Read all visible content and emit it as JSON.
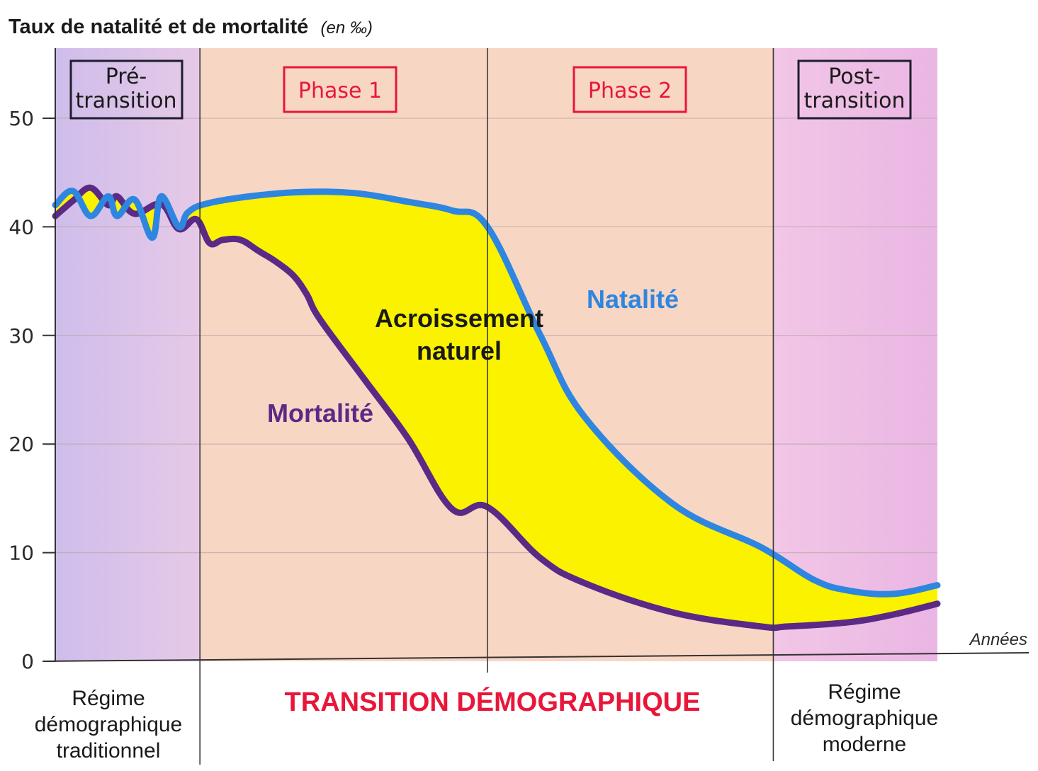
{
  "chart_data": {
    "type": "line",
    "title": "Taux de natalité et de mortalité",
    "title_unit": "(en ‰)",
    "xlabel": "Années",
    "ylim": [
      0,
      55
    ],
    "yticks": [
      "0",
      "10",
      "20",
      "30",
      "40",
      "50"
    ],
    "grid": true,
    "x_range": [
      0,
      100
    ],
    "phases": [
      {
        "label_line1": "Pré-",
        "label_line2": "transition",
        "x_start": 0,
        "x_end": 16.4,
        "color": "#d9b8e6",
        "box_color": "#1e1e2e"
      },
      {
        "label": "Phase 1",
        "x_start": 16.4,
        "x_end": 49,
        "color": "#f8d6c4",
        "box_color": "#e8173a"
      },
      {
        "label": "Phase 2",
        "x_start": 49,
        "x_end": 81.4,
        "color": "#f8d6c4",
        "box_color": "#e8173a"
      },
      {
        "label_line1": "Post-",
        "label_line2": "transition",
        "x_start": 81.4,
        "x_end": 100,
        "color": "#efbde6",
        "box_color": "#1e1e2e"
      }
    ],
    "series": [
      {
        "name": "Natalité",
        "color": "#2e86e0",
        "x": [
          0,
          2,
          4,
          6,
          7,
          9,
          11,
          12,
          14,
          15,
          17,
          22,
          28,
          34,
          40,
          45,
          49,
          55,
          60,
          70,
          80,
          86,
          90,
          95,
          100
        ],
        "y": [
          42,
          43.3,
          41,
          42.8,
          41,
          42.5,
          39,
          42.8,
          40,
          41.3,
          42.1,
          42.8,
          43.2,
          43.1,
          42.3,
          41.5,
          40,
          30,
          22.5,
          14.5,
          10.5,
          7.5,
          6.5,
          6.2,
          7
        ]
      },
      {
        "name": "Mortalité",
        "color": "#5a2a86",
        "x": [
          0,
          2,
          4,
          6,
          7,
          9,
          12,
          14,
          16,
          17.5,
          19,
          21,
          23,
          25,
          27,
          28.5,
          30,
          35,
          40,
          45,
          49,
          55,
          60,
          70,
          80,
          83,
          90,
          95,
          100
        ],
        "y": [
          41,
          42.4,
          43.6,
          42,
          42.8,
          41.2,
          42.1,
          39.8,
          40.7,
          38.5,
          38.8,
          38.8,
          37.8,
          36.8,
          35.5,
          33.8,
          31.5,
          26,
          20.5,
          14,
          14.2,
          9.5,
          7.2,
          4.5,
          3.2,
          3.2,
          3.6,
          4.3,
          5.3
        ]
      }
    ],
    "fill_between": {
      "label_line1": "Acroissement",
      "label_line2": "naturel",
      "color": "#fbf200"
    },
    "annotations": {
      "natalite": "Natalité",
      "mortalite": "Mortalité"
    },
    "bottom_labels": {
      "left": [
        "Régime",
        "démographique",
        "traditionnel"
      ],
      "center": "TRANSITION DÉMOGRAPHIQUE",
      "right": [
        "Régime",
        "démographique",
        "moderne"
      ]
    },
    "colors": {
      "natalite": "#2e86e0",
      "mortalite": "#5a2a86",
      "accroissement": "#fbf200",
      "transition_label": "#e8173a"
    }
  }
}
